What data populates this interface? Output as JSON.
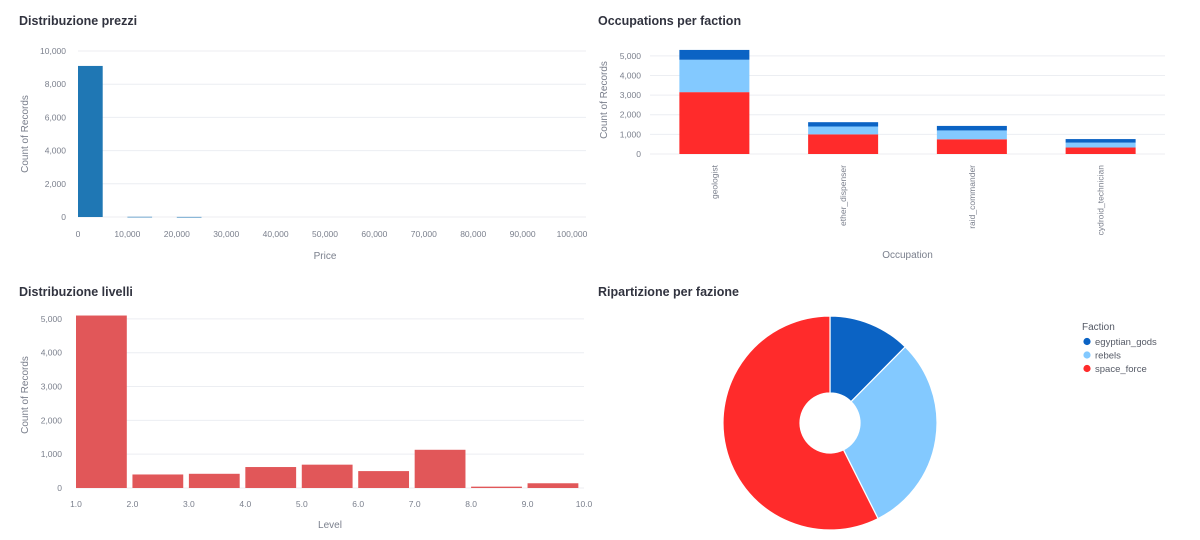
{
  "dashboard": {
    "panels": [
      {
        "title": "Distribuzione prezzi"
      },
      {
        "title": "Occupations per faction"
      },
      {
        "title": "Distribuzione livelli"
      },
      {
        "title": "Ripartizione per fazione"
      }
    ]
  },
  "colors": {
    "egyptian_gods": "#0b63c4",
    "rebels": "#83c9ff",
    "space_force": "#ff2b2b",
    "price_bar": "#1f77b4",
    "level_bar": "#e15759",
    "grid": "#eceef2",
    "tick": "#7a7f8c"
  },
  "chart_data": [
    {
      "type": "bar",
      "title": "Distribuzione prezzi",
      "xlabel": "Price",
      "ylabel": "Count of Records",
      "xlim": [
        0,
        100000
      ],
      "ylim": [
        0,
        10000
      ],
      "xticks": [
        0,
        10000,
        20000,
        30000,
        40000,
        50000,
        60000,
        70000,
        80000,
        90000,
        100000
      ],
      "xtick_labels": [
        "0",
        "10,000",
        "20,000",
        "30,000",
        "40,000",
        "50,000",
        "60,000",
        "70,000",
        "80,000",
        "90,000",
        "100,000"
      ],
      "yticks": [
        0,
        2000,
        4000,
        6000,
        8000,
        10000
      ],
      "ytick_labels": [
        "0",
        "2,000",
        "4,000",
        "6,000",
        "8,000",
        "10,000"
      ],
      "bins": [
        {
          "x0": 0,
          "x1": 5000,
          "value": 9100
        },
        {
          "x0": 10000,
          "x1": 15000,
          "value": 12
        },
        {
          "x0": 20000,
          "x1": 25000,
          "value": 5
        }
      ]
    },
    {
      "type": "bar",
      "stacked": true,
      "title": "Occupations per faction",
      "xlabel": "Occupation",
      "ylabel": "Count of Records",
      "ylim": [
        0,
        5500
      ],
      "yticks": [
        0,
        1000,
        2000,
        3000,
        4000,
        5000
      ],
      "ytick_labels": [
        "0",
        "1,000",
        "2,000",
        "3,000",
        "4,000",
        "5,000"
      ],
      "categories": [
        "geologist",
        "ether_dispenser",
        "raid_commander",
        "cydroid_technician"
      ],
      "series": [
        {
          "name": "space_force",
          "values": [
            3150,
            1000,
            750,
            330
          ]
        },
        {
          "name": "rebels",
          "values": [
            1650,
            400,
            450,
            250
          ]
        },
        {
          "name": "egyptian_gods",
          "values": [
            500,
            220,
            230,
            180
          ]
        }
      ]
    },
    {
      "type": "bar",
      "title": "Distribuzione livelli",
      "xlabel": "Level",
      "ylabel": "Count of Records",
      "xlim": [
        1.0,
        10.0
      ],
      "ylim": [
        0,
        5500
      ],
      "xticks": [
        1,
        2,
        3,
        4,
        5,
        6,
        7,
        8,
        9,
        10
      ],
      "xtick_labels": [
        "1.0",
        "2.0",
        "3.0",
        "4.0",
        "5.0",
        "6.0",
        "7.0",
        "8.0",
        "9.0",
        "10.0"
      ],
      "yticks": [
        0,
        1000,
        2000,
        3000,
        4000,
        5000
      ],
      "ytick_labels": [
        "0",
        "1,000",
        "2,000",
        "3,000",
        "4,000",
        "5,000"
      ],
      "bins": [
        {
          "x0": 1.0,
          "x1": 1.9,
          "value": 5100
        },
        {
          "x0": 2.0,
          "x1": 2.9,
          "value": 400
        },
        {
          "x0": 3.0,
          "x1": 3.9,
          "value": 420
        },
        {
          "x0": 4.0,
          "x1": 4.9,
          "value": 620
        },
        {
          "x0": 5.0,
          "x1": 5.9,
          "value": 690
        },
        {
          "x0": 6.0,
          "x1": 6.9,
          "value": 500
        },
        {
          "x0": 7.0,
          "x1": 7.9,
          "value": 1130
        },
        {
          "x0": 8.0,
          "x1": 8.9,
          "value": 40
        },
        {
          "x0": 9.0,
          "x1": 9.9,
          "value": 140
        }
      ]
    },
    {
      "type": "pie",
      "donut": true,
      "title": "Ripartizione per fazione",
      "legend_title": "Faction",
      "legend_position": "top-right",
      "slices": [
        {
          "name": "egyptian_gods",
          "value": 1130
        },
        {
          "name": "rebels",
          "value": 2750
        },
        {
          "name": "space_force",
          "value": 5230
        }
      ]
    }
  ]
}
